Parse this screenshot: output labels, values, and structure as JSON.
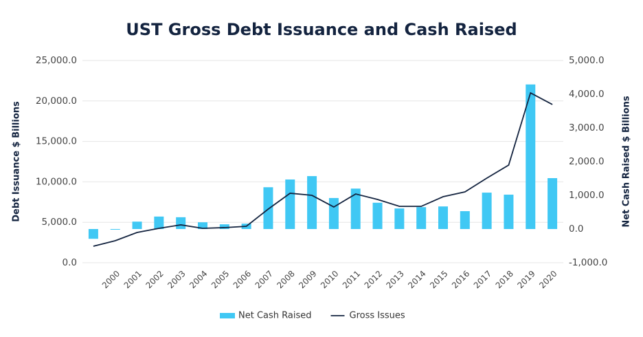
{
  "chart_data": {
    "type": "bar_line",
    "title": "UST Gross Debt Issuance and Cash Raised",
    "y_label": "Debt Issuance $ Billions",
    "y2_label": "Net Cash Raised $ Billions",
    "categories": [
      null,
      "2000",
      "2001",
      "2002",
      "2003",
      "2004",
      "2005",
      "2006",
      "2007",
      "2008",
      "2009",
      "2010",
      "2011",
      "2012",
      "2013",
      "2014",
      "2015",
      "2016",
      "2017",
      "2018",
      "2019",
      "2020"
    ],
    "series": [
      {
        "name": "Net Cash Raised",
        "type": "bar",
        "axis": "y2",
        "color": "#40c8f4",
        "values": [
          -290,
          -20,
          220,
          370,
          350,
          200,
          140,
          160,
          1240,
          1470,
          1570,
          920,
          1200,
          780,
          610,
          650,
          670,
          530,
          1080,
          1020,
          4290,
          1510
        ]
      },
      {
        "name": "Gross Issues",
        "type": "line",
        "axis": "y",
        "color": "#13233f",
        "values": [
          2040,
          2720,
          3740,
          4250,
          4680,
          4250,
          4340,
          4510,
          6630,
          8590,
          8330,
          6890,
          8500,
          7820,
          6970,
          6970,
          8160,
          8760,
          10460,
          12070,
          21000,
          19560
        ]
      }
    ],
    "ylim": [
      0,
      25000
    ],
    "yticks": [
      {
        "value": 0,
        "label": "0.0"
      },
      {
        "value": 5000,
        "label": "5,000.0"
      },
      {
        "value": 10000,
        "label": "10,000.0"
      },
      {
        "value": 15000,
        "label": "15,000.0"
      },
      {
        "value": 20000,
        "label": "20,000.0"
      },
      {
        "value": 25000,
        "label": "25,000.0"
      }
    ],
    "y2lim": [
      -1000,
      5000
    ],
    "y2ticks": [
      {
        "value": -1000,
        "label": "-1,000.0"
      },
      {
        "value": 0,
        "label": "0.0"
      },
      {
        "value": 1000,
        "label": "1,000.0"
      },
      {
        "value": 2000,
        "label": "2,000.0"
      },
      {
        "value": 3000,
        "label": "3,000.0"
      },
      {
        "value": 4000,
        "label": "4,000.0"
      },
      {
        "value": 5000,
        "label": "5,000.0"
      }
    ],
    "grid": true,
    "legend": "bottom"
  }
}
